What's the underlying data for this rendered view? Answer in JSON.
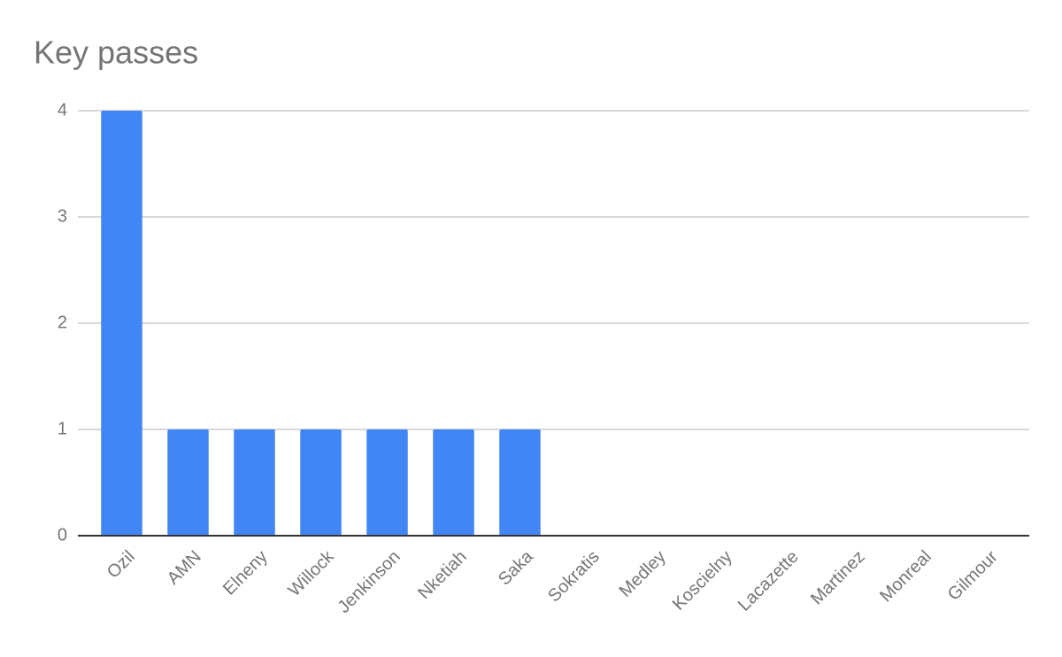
{
  "chart_data": {
    "type": "bar",
    "title": "Key passes",
    "categories": [
      "Ozil",
      "AMN",
      "Elneny",
      "Willock",
      "Jenkinson",
      "Nketiah",
      "Saka",
      "Sokratis",
      "Medley",
      "Koscielny",
      "Lacazette",
      "Martinez",
      "Monreal",
      "Gilmour"
    ],
    "values": [
      4,
      1,
      1,
      1,
      1,
      1,
      1,
      0,
      0,
      0,
      0,
      0,
      0,
      0
    ],
    "color": "#4285f4",
    "ylim": [
      0,
      4
    ],
    "yticks": [
      0,
      1,
      2,
      3,
      4
    ],
    "grid": true
  }
}
